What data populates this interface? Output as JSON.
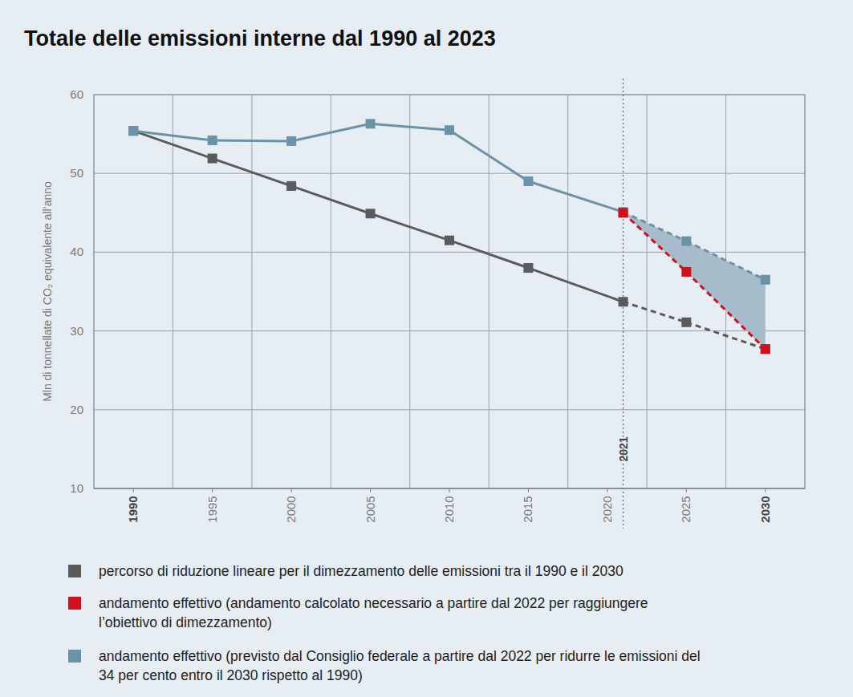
{
  "chart_data": {
    "type": "line",
    "title": "Totale delle emissioni interne dal 1990 al 2023",
    "y_label": "Mln di tonnellate di CO₂ equivalente all’anno",
    "x": [
      1990,
      1995,
      2000,
      2005,
      2010,
      2015,
      2021,
      2025,
      2030
    ],
    "xlim": [
      1987.5,
      2032.5
    ],
    "xticks": [
      1990,
      1995,
      2000,
      2005,
      2010,
      2015,
      2020,
      2025,
      2030
    ],
    "ylim": [
      10,
      60
    ],
    "yticks": [
      10,
      20,
      30,
      40,
      50,
      60
    ],
    "grid": true,
    "annotations": [
      {
        "x": 2021,
        "text": "2021"
      }
    ],
    "series": [
      {
        "name": "percorso di riduzione lineare per il dimezzamento delle emissioni tra il 1990 e il 2030",
        "color": "#5b5b5b",
        "marker": "square",
        "line_style": "solid",
        "values": [
          55.4,
          51.9,
          48.4,
          44.9,
          41.5,
          38.0,
          33.7,
          31.1,
          27.7
        ]
      },
      {
        "name": "andamento effettivo (andamento calcolato necessario a partire dal 2022 per raggiungere l’obiettivo di dimezzamento)",
        "color": "#d0101b",
        "marker": "square",
        "line_style": "dashed",
        "values": [
          null,
          null,
          null,
          null,
          null,
          null,
          45.0,
          37.5,
          27.7
        ]
      },
      {
        "name": "andamento effettivo (previsto dal Consiglio federale a partire dal 2022 per ridurre le emissioni del 34 per cento entro il 2030 rispetto al 1990)",
        "color": "#6a93a7",
        "marker": "square",
        "line_style": "solid",
        "values": [
          55.4,
          54.2,
          54.1,
          56.3,
          55.5,
          49.0,
          45.1,
          41.4,
          36.5
        ]
      }
    ]
  }
}
